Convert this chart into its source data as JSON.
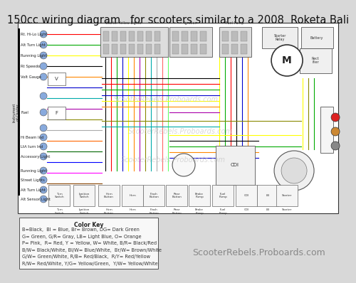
{
  "title": "150cc wiring diagram   for scooters similar to a 2008  Roketa Bali",
  "title_fontsize": 10.5,
  "bg_color": "#d8d8d8",
  "diagram_bg": "#ffffff",
  "watermark_text": "ScooterRebels.Proboards.com",
  "watermark_color": "#bbbbbb",
  "watermark_fontsize": 7,
  "footer_text": "ScooterRebels.Proboards.com",
  "footer_fontsize": 9,
  "color_key_title": "Color Key",
  "color_key_lines": [
    "B=Black,  Bl = Blue, Br= Brown, DG= Dark Green",
    "G= Green, G/R= Gray, LB= Light Blue, O= Orange",
    "P= Pink,  R= Red, Y = Yellow, W= White, B/R= Black/Red",
    "B/W= Black/White, Bl/W= Blue/White,  Br/W= Brown/White",
    "G/W= Green/White, R/B= Red/Black,  R/Y= Red/Yellow",
    "R/W= Red/White, Y/G= Yellow/Green,  Y/W= Yellow/White"
  ],
  "color_key_fontsize": 4.8,
  "left_component_labels": [
    "Rt. Hi-Lo Light",
    "Alt Turn Light",
    "Running Light",
    "Rt Speedo",
    "Volt Gauge",
    "",
    "",
    "Fuel",
    "",
    "Hi Beam Ind",
    "LtA turn Ind",
    "Accessory Light",
    "",
    "Running Light",
    "Street Lights",
    "Alt Turn Light",
    "Alt Sensor Light"
  ],
  "bottom_component_labels": [
    "Turn\nSwitch",
    "Ignition\nSwitch",
    "Horn\nButton",
    "Horn",
    "Flash\nButton",
    "Rear\nButton",
    "Brake\nPump",
    "CDI",
    "LB",
    "Starter"
  ]
}
